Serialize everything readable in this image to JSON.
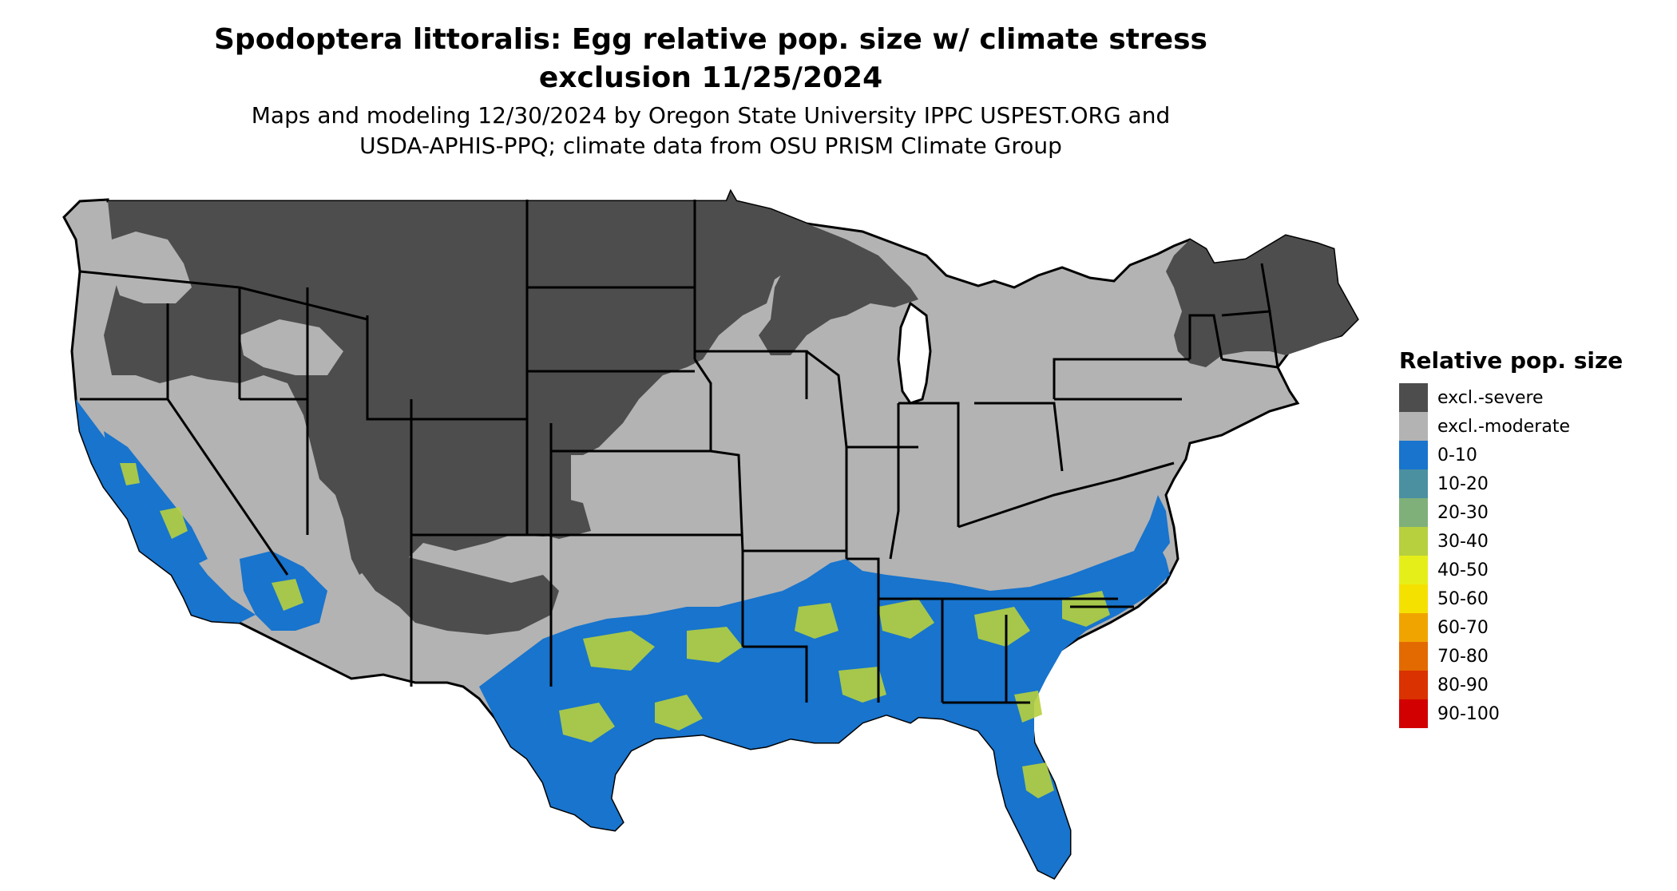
{
  "title": "Spodoptera littoralis: Egg relative pop. size w/ climate stress\nexclusion 11/25/2024",
  "subtitle": "Maps and modeling 12/30/2024 by Oregon State University IPPC USPEST.ORG and\nUSDA-APHIS-PPQ; climate data from OSU PRISM Climate Group",
  "map": {
    "region": "Conterminous United States",
    "state_outline_color": "#000000"
  },
  "legend": {
    "title": "Relative pop. size",
    "items": [
      {
        "label": "excl.-severe",
        "color": "#4d4d4d"
      },
      {
        "label": "excl.-moderate",
        "color": "#b3b3b3"
      },
      {
        "label": "0-10",
        "color": "#1874cd"
      },
      {
        "label": "10-20",
        "color": "#4a90a0"
      },
      {
        "label": "20-30",
        "color": "#7fb07a"
      },
      {
        "label": "30-40",
        "color": "#b6d03e"
      },
      {
        "label": "40-50",
        "color": "#e6ee1a"
      },
      {
        "label": "50-60",
        "color": "#f5e100"
      },
      {
        "label": "60-70",
        "color": "#f0a400"
      },
      {
        "label": "70-80",
        "color": "#e36a00"
      },
      {
        "label": "80-90",
        "color": "#da3200"
      },
      {
        "label": "90-100",
        "color": "#d20000"
      }
    ]
  }
}
